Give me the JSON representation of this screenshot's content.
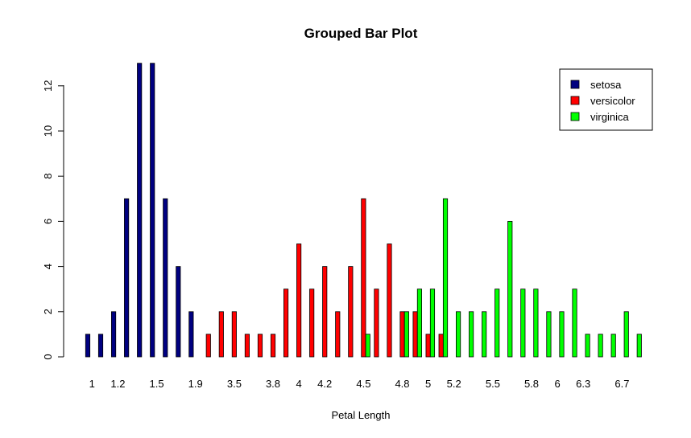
{
  "chart_data": {
    "type": "bar",
    "title": "Grouped Bar Plot",
    "xlabel": "Petal Length",
    "ylabel": "",
    "ylim": [
      0,
      13
    ],
    "yticks": [
      0,
      2,
      4,
      6,
      8,
      10,
      12
    ],
    "grid": false,
    "legend_position": "top-right",
    "categories": [
      "1",
      "1.1",
      "1.2",
      "1.3",
      "1.4",
      "1.5",
      "1.6",
      "1.7",
      "1.9",
      "3",
      "3.3",
      "3.5",
      "3.6",
      "3.7",
      "3.8",
      "3.9",
      "4",
      "4.1",
      "4.2",
      "4.3",
      "4.4",
      "4.5",
      "4.6",
      "4.7",
      "4.8",
      "4.9",
      "5",
      "5.1",
      "5.2",
      "5.3",
      "5.4",
      "5.5",
      "5.6",
      "5.7",
      "5.8",
      "5.9",
      "6",
      "6.1",
      "6.3",
      "6.4",
      "6.6",
      "6.7",
      "6.9"
    ],
    "tick_labels_shown": [
      "1",
      "1.2",
      "1.5",
      "1.9",
      "3.5",
      "3.8",
      "4",
      "4.2",
      "4.5",
      "4.8",
      "5",
      "5.2",
      "5.5",
      "5.8",
      "6",
      "6.3",
      "6.7"
    ],
    "series": [
      {
        "name": "setosa",
        "color": "#000080",
        "values": [
          1,
          1,
          2,
          7,
          13,
          13,
          7,
          4,
          2,
          0,
          0,
          0,
          0,
          0,
          0,
          0,
          0,
          0,
          0,
          0,
          0,
          0,
          0,
          0,
          0,
          0,
          0,
          0,
          0,
          0,
          0,
          0,
          0,
          0,
          0,
          0,
          0,
          0,
          0,
          0,
          0,
          0,
          0
        ]
      },
      {
        "name": "versicolor",
        "color": "#ff0000",
        "values": [
          0,
          0,
          0,
          0,
          0,
          0,
          0,
          0,
          0,
          1,
          2,
          2,
          1,
          1,
          1,
          3,
          5,
          3,
          4,
          2,
          4,
          7,
          3,
          5,
          2,
          2,
          1,
          1,
          0,
          0,
          0,
          0,
          0,
          0,
          0,
          0,
          0,
          0,
          0,
          0,
          0,
          0,
          0
        ]
      },
      {
        "name": "virginica",
        "color": "#00ff00",
        "values": [
          0,
          0,
          0,
          0,
          0,
          0,
          0,
          0,
          0,
          0,
          0,
          0,
          0,
          0,
          0,
          0,
          0,
          0,
          0,
          0,
          0,
          1,
          0,
          0,
          2,
          3,
          3,
          7,
          2,
          2,
          2,
          3,
          6,
          3,
          3,
          2,
          2,
          3,
          1,
          1,
          1,
          2,
          1
        ]
      }
    ]
  }
}
